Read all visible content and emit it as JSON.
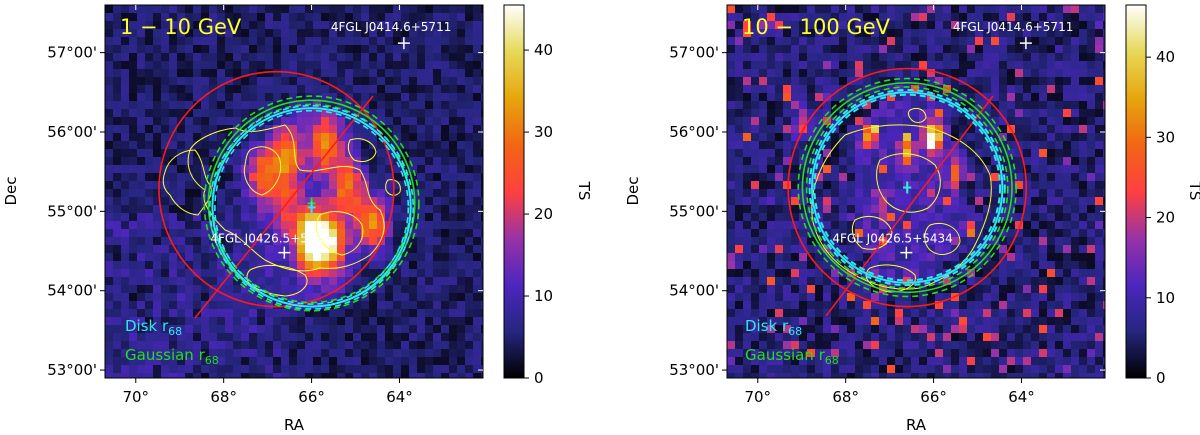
{
  "chart_data": [
    {
      "type": "heatmap",
      "title": "1 − 10 GeV",
      "xlabel": "RA",
      "ylabel": "Dec",
      "colorbar_label": "TS",
      "xlim": [
        70.7,
        62.1
      ],
      "ylim": [
        52.9,
        57.6
      ],
      "clim": [
        0,
        45.5
      ],
      "x_ticks": [
        "70°",
        "68°",
        "66°",
        "64°"
      ],
      "y_ticks": [
        "53°00'",
        "54°00'",
        "55°00'",
        "56°00'",
        "57°00'"
      ],
      "colorbar_ticks": [
        "0",
        "10",
        "20",
        "30",
        "40"
      ],
      "colormap": "CMRmap",
      "grid": false,
      "sources": [
        {
          "name": "4FGL J0414.6+5711",
          "ra": 63.9,
          "dec": 57.12
        },
        {
          "name": "4FGL J0426.5+5434",
          "ra": 66.62,
          "dec": 54.48
        }
      ],
      "disk_r68": {
        "label": "Disk r",
        "sub": "68",
        "ra": 66.0,
        "dec": 55.05,
        "radius_deg": 1.25,
        "color": "#2ee8ef"
      },
      "gaussian_r68": {
        "label": "Gaussian r",
        "sub": "68",
        "ra": 66.0,
        "dec": 55.1,
        "radius_deg": 1.3,
        "color": "#22e01a"
      },
      "snr_outline": {
        "ra": 66.8,
        "dec": 55.28,
        "radius_deg": 1.48,
        "color": "#ff1a1a"
      },
      "bright_spots": [
        {
          "ra": 66.0,
          "dec": 54.65,
          "ts": 45
        },
        {
          "ra": 65.6,
          "dec": 54.6,
          "ts": 30
        },
        {
          "ra": 64.6,
          "dec": 54.85,
          "ts": 26
        },
        {
          "ra": 66.6,
          "dec": 55.7,
          "ts": 24
        },
        {
          "ra": 65.7,
          "dec": 55.85,
          "ts": 22
        },
        {
          "ra": 67.2,
          "dec": 55.45,
          "ts": 18
        },
        {
          "ra": 65.2,
          "dec": 55.3,
          "ts": 20
        },
        {
          "ra": 66.6,
          "dec": 55.1,
          "ts": 14
        }
      ],
      "colors": {
        "frame": "#000000",
        "band_label": "#ffff33",
        "legend_disk": "#2ee8ef",
        "legend_gauss": "#22e01a",
        "contour": "#ffff33",
        "axis_line": "#ff1a1a"
      }
    },
    {
      "type": "heatmap",
      "title": "10 − 100 GeV",
      "xlabel": "RA",
      "ylabel": "Dec",
      "colorbar_label": "TS",
      "xlim": [
        70.7,
        62.1
      ],
      "ylim": [
        52.9,
        57.6
      ],
      "clim": [
        0,
        46.5
      ],
      "x_ticks": [
        "70°",
        "68°",
        "66°",
        "64°"
      ],
      "y_ticks": [
        "53°00'",
        "54°00'",
        "55°00'",
        "56°00'",
        "57°00'"
      ],
      "colorbar_ticks": [
        "0",
        "10",
        "20",
        "30",
        "40"
      ],
      "colormap": "CMRmap",
      "grid": false,
      "sources": [
        {
          "name": "4FGL J0414.6+5711",
          "ra": 63.9,
          "dec": 57.12
        },
        {
          "name": "4FGL J0426.5+5434",
          "ra": 66.62,
          "dec": 54.48
        }
      ],
      "disk_r68": {
        "label": "Disk r",
        "sub": "68",
        "ra": 66.6,
        "dec": 55.3,
        "radius_deg": 1.2,
        "color": "#2ee8ef"
      },
      "gaussian_r68": {
        "label": "Gaussian r",
        "sub": "68",
        "ra": 66.6,
        "dec": 55.3,
        "radius_deg": 1.32,
        "color": "#22e01a"
      },
      "snr_outline": {
        "ra": 66.6,
        "dec": 55.3,
        "radius_deg": 1.5,
        "color": "#ff1a1a"
      },
      "bright_spots": [
        {
          "ra": 66.0,
          "dec": 55.95,
          "ts": 44
        },
        {
          "ra": 66.6,
          "dec": 55.75,
          "ts": 26
        },
        {
          "ra": 67.5,
          "dec": 55.95,
          "ts": 22
        },
        {
          "ra": 65.5,
          "dec": 55.5,
          "ts": 20
        },
        {
          "ra": 69.0,
          "dec": 56.1,
          "ts": 18
        },
        {
          "ra": 65.2,
          "dec": 54.8,
          "ts": 16
        },
        {
          "ra": 67.2,
          "dec": 55.1,
          "ts": 12
        }
      ],
      "colors": {
        "frame": "#000000",
        "band_label": "#ffff33",
        "legend_disk": "#2ee8ef",
        "legend_gauss": "#22e01a",
        "contour": "#ffff33",
        "axis_line": "#ff1a1a"
      }
    }
  ]
}
